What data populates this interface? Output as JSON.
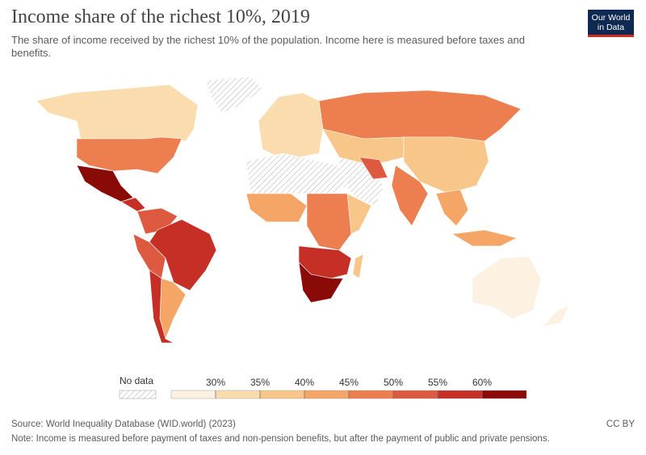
{
  "header": {
    "title": "Income share of the richest 10%, 2019",
    "subtitle": "The share of income received by the richest 10% of the population. Income here is measured before taxes and benefits.",
    "logo": [
      "Our World",
      "in Data"
    ]
  },
  "legend": {
    "no_data": "No data",
    "ticks": [
      {
        "value": 30,
        "label": "30%"
      },
      {
        "value": 35,
        "label": "35%"
      },
      {
        "value": 40,
        "label": "40%"
      },
      {
        "value": 45,
        "label": "45%"
      },
      {
        "value": 50,
        "label": "50%"
      },
      {
        "value": 55,
        "label": "55%"
      },
      {
        "value": 60,
        "label": "60%"
      }
    ],
    "colors": [
      "#fdf1e2",
      "#fbdcae",
      "#f9c68a",
      "#f5a566",
      "#ec7e50",
      "#dd5a40",
      "#c52f25",
      "#8a0a08"
    ]
  },
  "footer": {
    "source": "Source: World Inequality Database (WID.world) (2023)",
    "note": "Note: Income is measured before payment of taxes and non-pension benefits, but after the payment of public and private pensions.",
    "license": "CC BY"
  }
}
